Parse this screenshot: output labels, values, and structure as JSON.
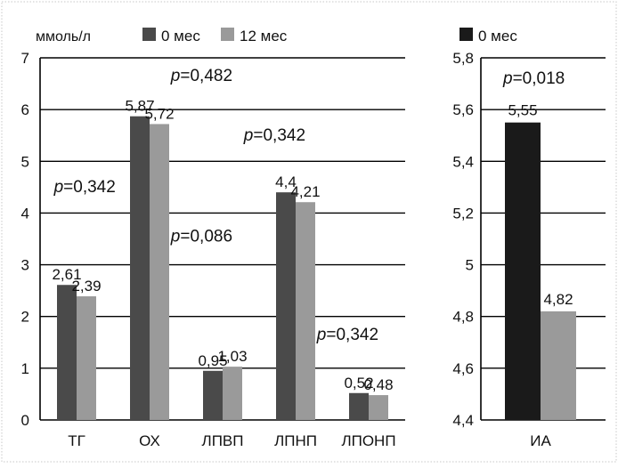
{
  "chart_data": [
    {
      "type": "bar",
      "unit_label": "ммоль/л",
      "categories": [
        "ТГ",
        "ОХ",
        "ЛПВП",
        "ЛПНП",
        "ЛПОНП"
      ],
      "series": [
        {
          "name": "0 мес",
          "color": "#4a4a4a",
          "values": [
            2.61,
            5.87,
            0.95,
            4.4,
            0.52
          ],
          "labels": [
            "2,61",
            "5,87",
            "0,95",
            "4,4",
            "0,52"
          ]
        },
        {
          "name": "12 мес",
          "color": "#9a9a9a",
          "values": [
            2.39,
            5.72,
            1.03,
            4.21,
            0.48
          ],
          "labels": [
            "2,39",
            "5,72",
            "1,03",
            "4,21",
            "0,48"
          ]
        }
      ],
      "ylim": [
        0,
        7
      ],
      "yticks": [
        0,
        1,
        2,
        3,
        4,
        5,
        6,
        7
      ],
      "ytick_labels": [
        "0",
        "1",
        "2",
        "3",
        "4",
        "5",
        "6",
        "7"
      ],
      "annotations": [
        {
          "p": "p",
          "text": "=0,342",
          "x_index": 0.3,
          "y": 4.4
        },
        {
          "p": "p",
          "text": "=0,482",
          "x_index": 1.9,
          "y": 6.55
        },
        {
          "p": "p",
          "text": "=0,086",
          "x_index": 1.9,
          "y": 3.45
        },
        {
          "p": "p",
          "text": "=0,342",
          "x_index": 2.9,
          "y": 5.4
        },
        {
          "p": "p",
          "text": "=0,342",
          "x_index": 3.9,
          "y": 1.55
        }
      ],
      "grid": true
    },
    {
      "type": "bar",
      "categories": [
        "ИА"
      ],
      "series": [
        {
          "name": "0 мес",
          "color": "#1a1a1a",
          "values": [
            5.55
          ],
          "labels": [
            "5,55"
          ]
        },
        {
          "name": "",
          "color": "#9a9a9a",
          "values": [
            4.82
          ],
          "labels": [
            "4,82"
          ]
        }
      ],
      "ylim": [
        4.4,
        5.8
      ],
      "yticks": [
        4.4,
        4.6,
        4.8,
        5.0,
        5.2,
        5.4,
        5.6,
        5.8
      ],
      "ytick_labels": [
        "4,4",
        "4,6",
        "4,8",
        "5",
        "5,2",
        "5,4",
        "5,6",
        "5,8"
      ],
      "annotations": [
        {
          "p": "p",
          "text": "=0,018",
          "x_index": 0,
          "y": 5.7
        }
      ],
      "grid": true
    }
  ]
}
